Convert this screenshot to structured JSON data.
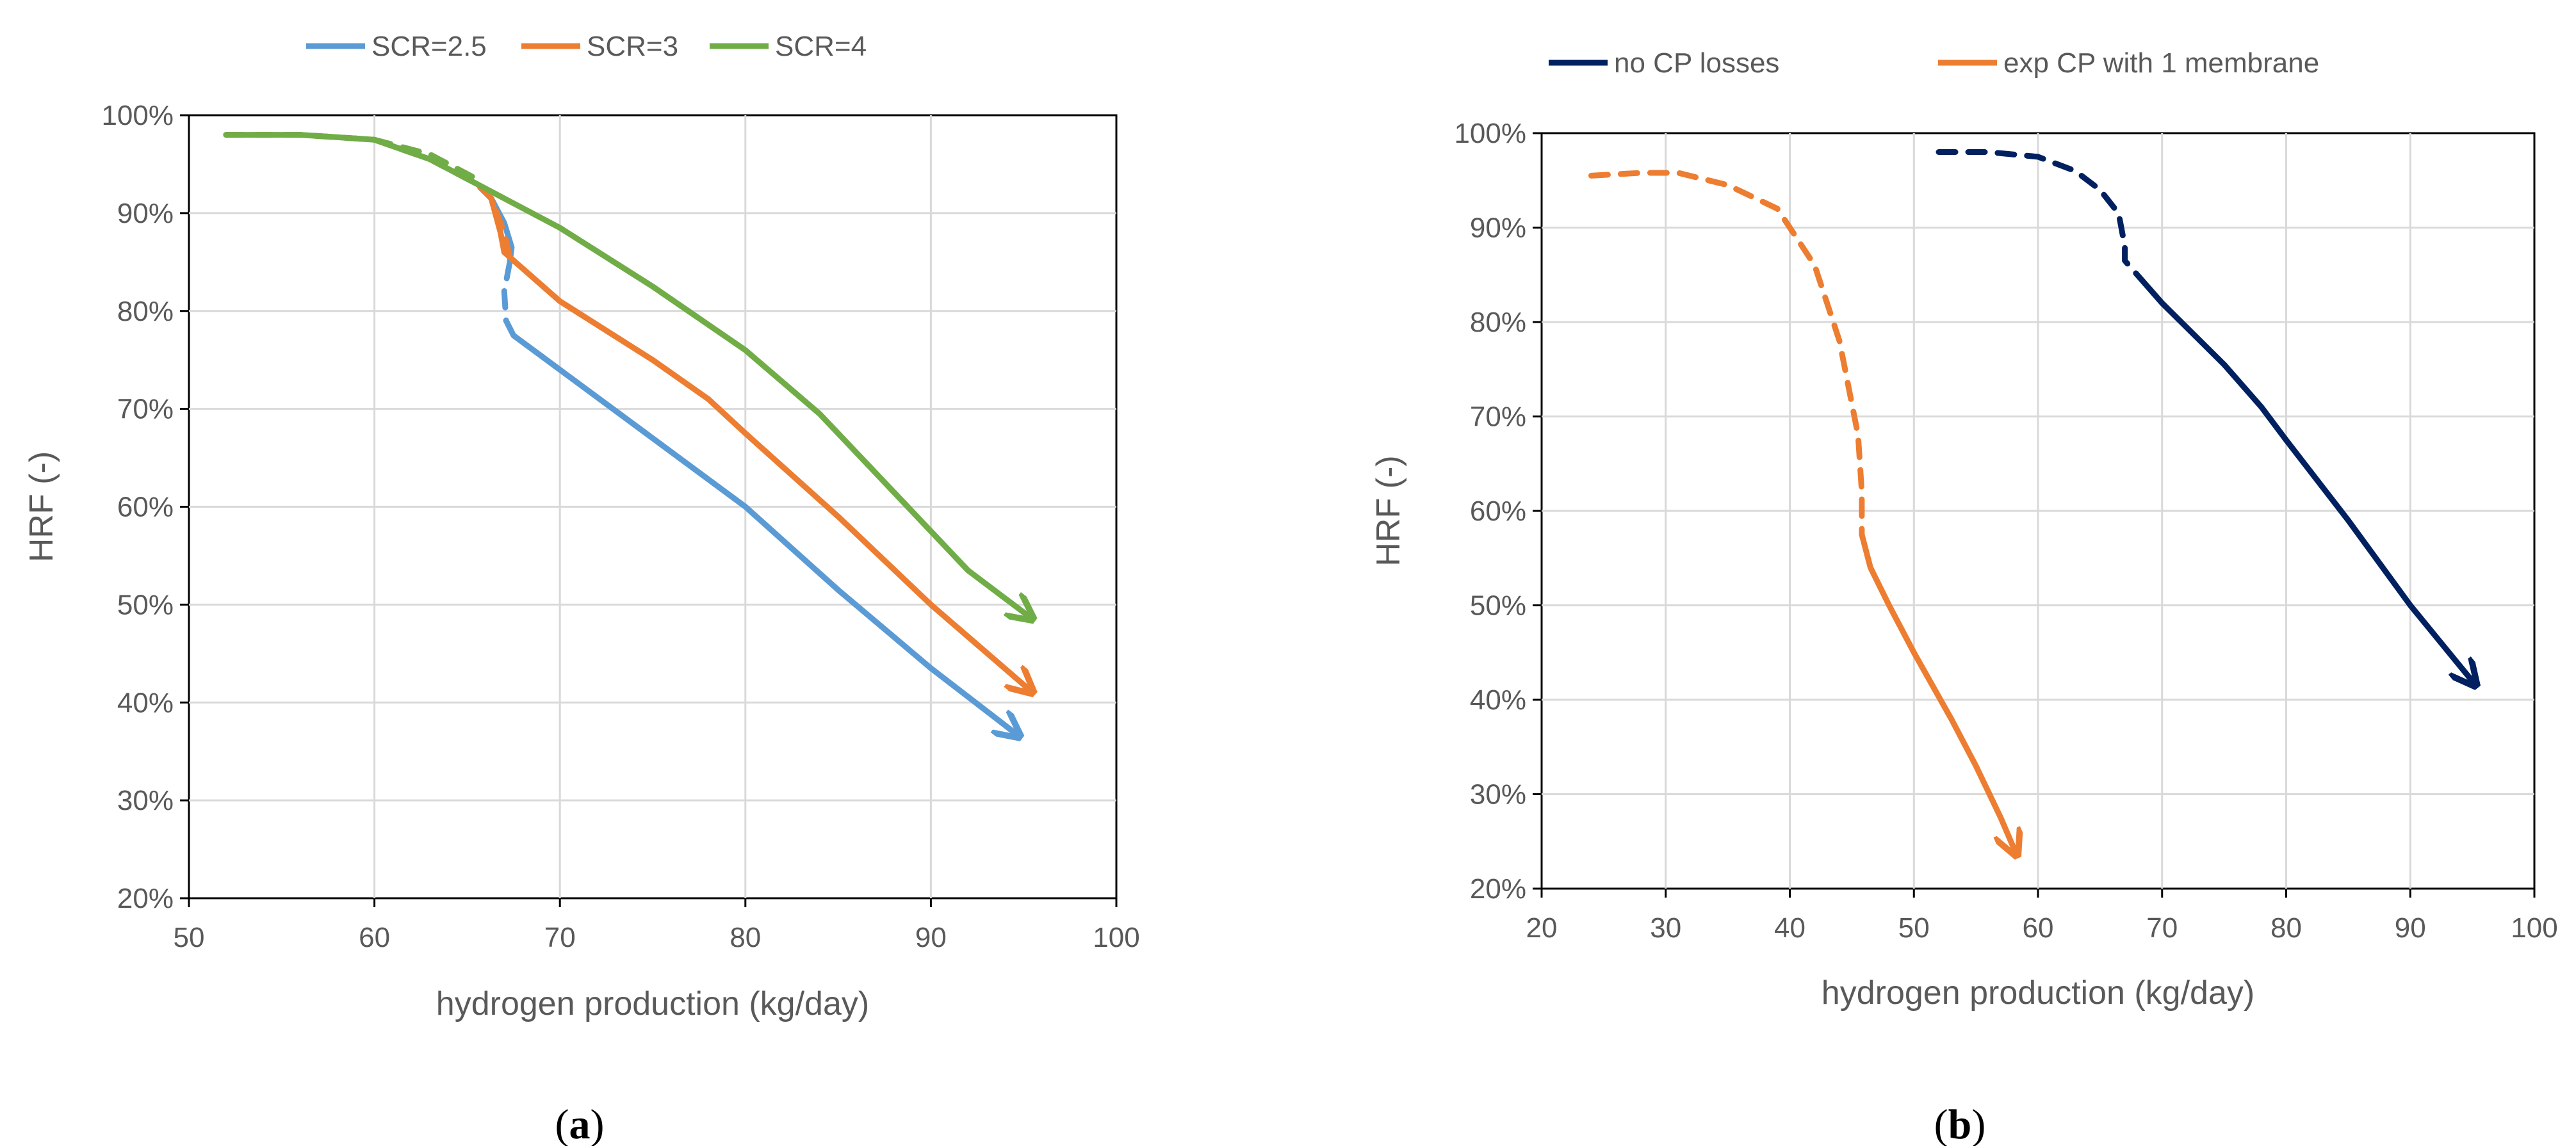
{
  "chart_data": [
    {
      "type": "line",
      "panel": "(a)",
      "panel_open": "(",
      "panel_letter": "a",
      "panel_close": ")",
      "xlabel": "hydrogen production (kg/day)",
      "ylabel": "HRF (-)",
      "xlim": [
        50,
        100
      ],
      "ylim": [
        20,
        100
      ],
      "xticks": [
        "50",
        "60",
        "70",
        "80",
        "90",
        "100"
      ],
      "yticks": [
        "20%",
        "30%",
        "40%",
        "50%",
        "60%",
        "70%",
        "80%",
        "90%",
        "100%"
      ],
      "grid": "vertical and horizontal",
      "legend_position": "top",
      "series": [
        {
          "name": "SCR=2.5",
          "color": "#5b9bd5",
          "dashed": [
            [
              52,
              98
            ],
            [
              56,
              98
            ],
            [
              60,
              97.5
            ],
            [
              63,
              95.5
            ],
            [
              65.5,
              93
            ],
            [
              66.3,
              91.5
            ]
          ],
          "dashed2": [
            [
              67.3,
              85
            ],
            [
              67,
              82
            ],
            [
              67.1,
              79
            ]
          ],
          "solid": [
            [
              66.3,
              91.5
            ],
            [
              67,
              89
            ],
            [
              67.4,
              86.5
            ],
            [
              67.3,
              85
            ]
          ],
          "solid2": [
            [
              67.1,
              79
            ],
            [
              67.5,
              77.5
            ],
            [
              70,
              74
            ],
            [
              75,
              67
            ],
            [
              80,
              60
            ],
            [
              85,
              51.5
            ],
            [
              90,
              43.5
            ],
            [
              94.8,
              36.5
            ]
          ]
        },
        {
          "name": "SCR=3",
          "color": "#ed7d31",
          "dashed": [
            [
              52,
              98
            ],
            [
              56,
              98
            ],
            [
              60,
              97.5
            ],
            [
              63,
              95.5
            ],
            [
              65.5,
              93
            ],
            [
              66.3,
              91.5
            ],
            [
              67,
              88
            ],
            [
              67.3,
              85.5
            ]
          ],
          "solid": [
            [
              66.3,
              91.5
            ],
            [
              66.8,
              88
            ],
            [
              67,
              86
            ],
            [
              67.3,
              85.5
            ],
            [
              70,
              81
            ],
            [
              75,
              75
            ],
            [
              78,
              71
            ],
            [
              80,
              67.5
            ],
            [
              85,
              59
            ],
            [
              90,
              50
            ],
            [
              95.5,
              41
            ]
          ]
        },
        {
          "name": "SCR=4",
          "color": "#70ad47",
          "dashed": [
            [
              60,
              97.5
            ],
            [
              63,
              96
            ],
            [
              65.5,
              93.5
            ]
          ],
          "solid": [
            [
              52,
              98
            ],
            [
              56,
              98
            ],
            [
              60,
              97.5
            ],
            [
              63,
              95.5
            ],
            [
              65.5,
              93
            ],
            [
              70,
              88.5
            ],
            [
              75,
              82.5
            ],
            [
              80,
              76
            ],
            [
              84,
              69.5
            ],
            [
              88,
              61.5
            ],
            [
              92,
              53.5
            ],
            [
              95.5,
              48.5
            ]
          ]
        }
      ]
    },
    {
      "type": "line",
      "panel": "(b)",
      "panel_open": "(",
      "panel_letter": "b",
      "panel_close": ")",
      "xlabel": "hydrogen production (kg/day)",
      "ylabel": "HRF (-)",
      "xlim": [
        20,
        100
      ],
      "ylim": [
        20,
        100
      ],
      "xticks": [
        "20",
        "30",
        "40",
        "50",
        "60",
        "70",
        "80",
        "90",
        "100"
      ],
      "yticks": [
        "20%",
        "30%",
        "40%",
        "50%",
        "60%",
        "70%",
        "80%",
        "90%",
        "100%"
      ],
      "grid": "vertical and horizontal",
      "legend_position": "top",
      "series": [
        {
          "name": "no CP losses",
          "color": "#002060",
          "dashed": [
            [
              52,
              98
            ],
            [
              56,
              98
            ],
            [
              60,
              97.5
            ],
            [
              63,
              96
            ],
            [
              65,
              94
            ],
            [
              66.5,
              91.5
            ],
            [
              67,
              88
            ],
            [
              67,
              86.5
            ],
            [
              68,
              85
            ]
          ],
          "solid": [
            [
              68,
              85
            ],
            [
              70,
              82
            ],
            [
              75,
              75.5
            ],
            [
              78,
              71
            ],
            [
              80,
              67.5
            ],
            [
              85,
              59
            ],
            [
              90,
              50
            ],
            [
              95.3,
              41.5
            ]
          ]
        },
        {
          "name": "exp CP with 1 membrane",
          "color": "#ed7d31",
          "dashed": [
            [
              24,
              95.5
            ],
            [
              28,
              95.8
            ],
            [
              31,
              95.8
            ],
            [
              35,
              94.5
            ],
            [
              39,
              92
            ],
            [
              42,
              86
            ],
            [
              44,
              78
            ],
            [
              45.5,
              68
            ],
            [
              45.8,
              62
            ],
            [
              45.8,
              57.5
            ]
          ],
          "solid": [
            [
              45.8,
              57.5
            ],
            [
              46.5,
              54
            ],
            [
              48,
              50
            ],
            [
              50,
              45
            ],
            [
              53,
              38
            ],
            [
              55,
              33
            ],
            [
              57,
              27.5
            ],
            [
              58.3,
              23.5
            ]
          ]
        }
      ]
    }
  ]
}
